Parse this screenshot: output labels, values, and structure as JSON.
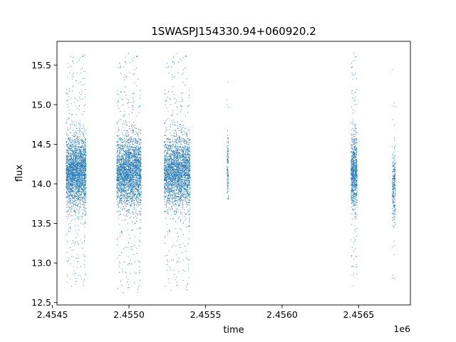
{
  "chart_data": {
    "type": "scatter",
    "title": "1SWASPJ154330.94+060920.2",
    "xlabel": "time",
    "ylabel": "flux",
    "x_offset_label": "1e6",
    "xlim": [
      2454530,
      2456838
    ],
    "ylim": [
      12.47,
      15.8
    ],
    "x_ticks": [
      2454500,
      2455000,
      2455500,
      2456000,
      2456500
    ],
    "x_tick_labels": [
      "2.4545",
      "2.4550",
      "2.4555",
      "2.4560",
      "2.4565"
    ],
    "y_ticks": [
      12.5,
      13.0,
      13.5,
      14.0,
      14.5,
      15.0,
      15.5
    ],
    "y_tick_labels": [
      "12.5",
      "13.0",
      "13.5",
      "14.0",
      "14.5",
      "15.0",
      "15.5"
    ],
    "grid": false,
    "point_color": "#1f77b4",
    "observing_seasons": [
      {
        "x_range": [
          2454590,
          2454720
        ],
        "median_flux": 14.15,
        "flux_range": [
          12.7,
          15.65
        ],
        "approx_points": 3000
      },
      {
        "x_range": [
          2454920,
          2455080
        ],
        "median_flux": 14.15,
        "flux_range": [
          12.62,
          15.65
        ],
        "approx_points": 4000
      },
      {
        "x_range": [
          2455230,
          2455400
        ],
        "median_flux": 14.15,
        "flux_range": [
          12.65,
          15.65
        ],
        "approx_points": 3800
      },
      {
        "x_range": [
          2455640,
          2455650
        ],
        "median_flux": 14.2,
        "flux_range": [
          13.75,
          15.4
        ],
        "approx_points": 150
      },
      {
        "x_range": [
          2456450,
          2456490
        ],
        "median_flux": 14.15,
        "flux_range": [
          12.7,
          15.65
        ],
        "approx_points": 1000
      },
      {
        "x_range": [
          2456720,
          2456740
        ],
        "median_flux": 13.95,
        "flux_range": [
          12.75,
          15.6
        ],
        "approx_points": 300
      }
    ]
  }
}
